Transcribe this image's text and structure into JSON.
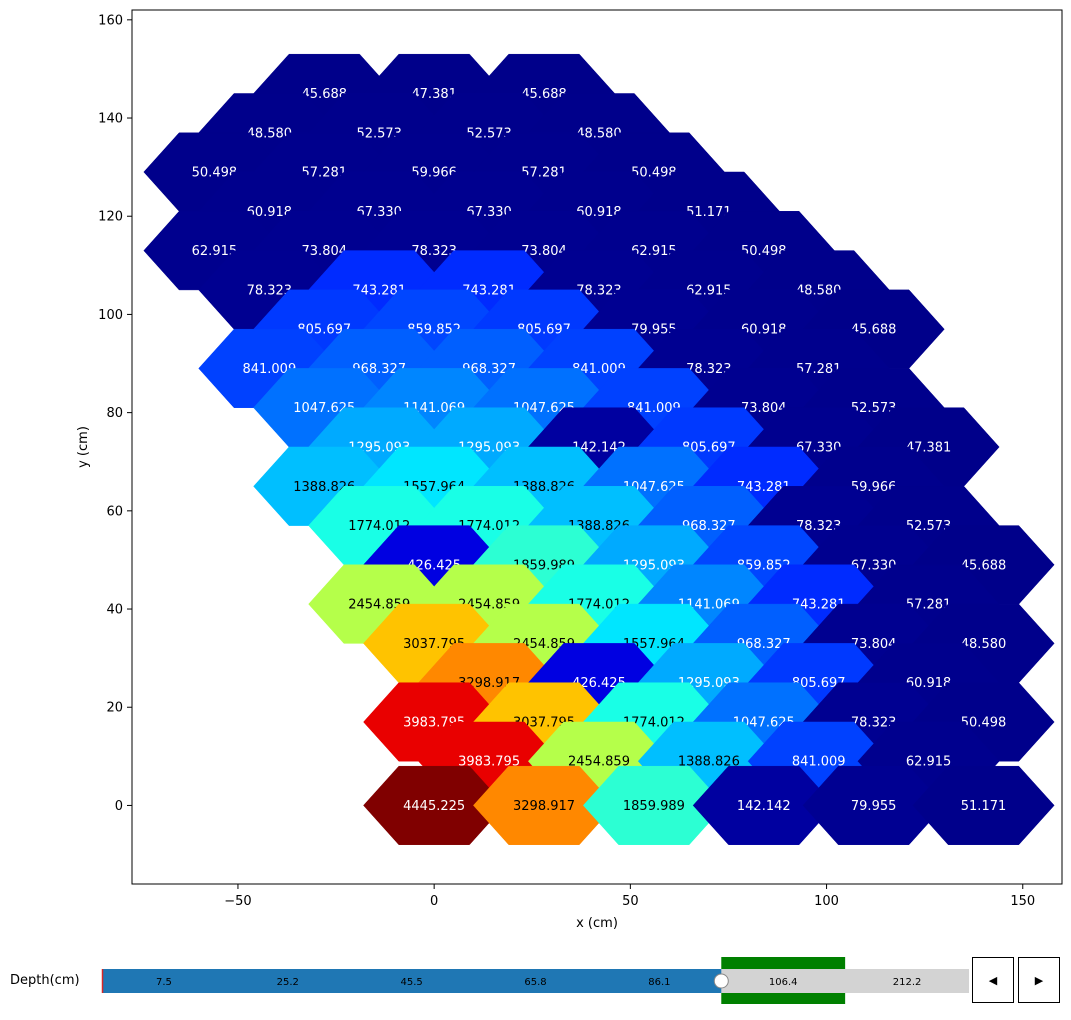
{
  "chart_data": {
    "type": "heatmap",
    "style": "hexagonal",
    "xlabel": "x (cm)",
    "ylabel": "y (cm)",
    "xlim": [
      -77,
      160
    ],
    "ylim": [
      -16,
      162
    ],
    "xticks": [
      -50,
      0,
      50,
      100,
      150
    ],
    "yticks": [
      0,
      20,
      40,
      60,
      80,
      100,
      120,
      140,
      160
    ],
    "xtick_labels": [
      "−50",
      "0",
      "50",
      "100",
      "150"
    ],
    "ytick_labels": [
      "0",
      "20",
      "40",
      "60",
      "80",
      "100",
      "120",
      "140",
      "160"
    ],
    "colormap": "jet",
    "vmin": 0,
    "vmax": 4445.225,
    "cells": [
      {
        "x": -28,
        "y": 145,
        "value": 45.688,
        "label": "45.688"
      },
      {
        "x": 0,
        "y": 145,
        "value": 47.381,
        "label": "47.381"
      },
      {
        "x": 28,
        "y": 145,
        "value": 45.688,
        "label": "45.688"
      },
      {
        "x": -42,
        "y": 137,
        "value": 48.58,
        "label": "48.580"
      },
      {
        "x": -14,
        "y": 137,
        "value": 52.573,
        "label": "52.573"
      },
      {
        "x": 14,
        "y": 137,
        "value": 52.573,
        "label": "52.573"
      },
      {
        "x": 42,
        "y": 137,
        "value": 48.58,
        "label": "48.580"
      },
      {
        "x": -56,
        "y": 129,
        "value": 50.498,
        "label": "50.498"
      },
      {
        "x": -28,
        "y": 129,
        "value": 57.281,
        "label": "57.281"
      },
      {
        "x": 0,
        "y": 129,
        "value": 59.966,
        "label": "59.966"
      },
      {
        "x": 28,
        "y": 129,
        "value": 57.281,
        "label": "57.281"
      },
      {
        "x": 56,
        "y": 129,
        "value": 50.498,
        "label": "50.498"
      },
      {
        "x": -42,
        "y": 121,
        "value": 60.918,
        "label": "60.918"
      },
      {
        "x": -14,
        "y": 121,
        "value": 67.33,
        "label": "67.330"
      },
      {
        "x": 14,
        "y": 121,
        "value": 67.33,
        "label": "67.330"
      },
      {
        "x": 42,
        "y": 121,
        "value": 60.918,
        "label": "60.918"
      },
      {
        "x": 70,
        "y": 121,
        "value": 51.171,
        "label": "51.171"
      },
      {
        "x": -56,
        "y": 113,
        "value": 62.915,
        "label": "62.915"
      },
      {
        "x": -28,
        "y": 113,
        "value": 73.804,
        "label": "73.804"
      },
      {
        "x": 0,
        "y": 113,
        "value": 78.323,
        "label": "78.323"
      },
      {
        "x": 28,
        "y": 113,
        "value": 73.804,
        "label": "73.804"
      },
      {
        "x": 56,
        "y": 113,
        "value": 62.915,
        "label": "62.915"
      },
      {
        "x": 84,
        "y": 113,
        "value": 50.498,
        "label": "50.498"
      },
      {
        "x": -42,
        "y": 105,
        "value": 78.323,
        "label": "78.323"
      },
      {
        "x": -14,
        "y": 105,
        "value": 743.281,
        "label": "743.281"
      },
      {
        "x": 14,
        "y": 105,
        "value": 743.281,
        "label": "743.281"
      },
      {
        "x": 42,
        "y": 105,
        "value": 78.323,
        "label": "78.323"
      },
      {
        "x": 70,
        "y": 105,
        "value": 62.915,
        "label": "62.915"
      },
      {
        "x": 98,
        "y": 105,
        "value": 48.58,
        "label": "48.580"
      },
      {
        "x": -28,
        "y": 97,
        "value": 805.697,
        "label": "805.697"
      },
      {
        "x": 0,
        "y": 97,
        "value": 859.852,
        "label": "859.852"
      },
      {
        "x": 28,
        "y": 97,
        "value": 805.697,
        "label": "805.697"
      },
      {
        "x": 56,
        "y": 97,
        "value": 79.955,
        "label": "79.955"
      },
      {
        "x": 84,
        "y": 97,
        "value": 60.918,
        "label": "60.918"
      },
      {
        "x": 112,
        "y": 97,
        "value": 45.688,
        "label": "45.688"
      },
      {
        "x": -42,
        "y": 89,
        "value": 841.009,
        "label": "841.009"
      },
      {
        "x": -14,
        "y": 89,
        "value": 968.327,
        "label": "968.327"
      },
      {
        "x": 14,
        "y": 89,
        "value": 968.327,
        "label": "968.327"
      },
      {
        "x": 42,
        "y": 89,
        "value": 841.009,
        "label": "841.009"
      },
      {
        "x": 70,
        "y": 89,
        "value": 78.323,
        "label": "78.323"
      },
      {
        "x": 98,
        "y": 89,
        "value": 57.281,
        "label": "57.281"
      },
      {
        "x": -28,
        "y": 81,
        "value": 1047.625,
        "label": "1047.625"
      },
      {
        "x": 0,
        "y": 81,
        "value": 1141.069,
        "label": "1141.069"
      },
      {
        "x": 28,
        "y": 81,
        "value": 1047.625,
        "label": "1047.625"
      },
      {
        "x": 56,
        "y": 81,
        "value": 841.009,
        "label": "841.009"
      },
      {
        "x": 84,
        "y": 81,
        "value": 73.804,
        "label": "73.804"
      },
      {
        "x": 112,
        "y": 81,
        "value": 52.573,
        "label": "52.573"
      },
      {
        "x": -14,
        "y": 73,
        "value": 1295.093,
        "label": "1295.093"
      },
      {
        "x": 14,
        "y": 73,
        "value": 1295.093,
        "label": "1295.093"
      },
      {
        "x": 42,
        "y": 73,
        "value": 142.142,
        "label": "142.142"
      },
      {
        "x": 70,
        "y": 73,
        "value": 805.697,
        "label": "805.697"
      },
      {
        "x": 98,
        "y": 73,
        "value": 67.33,
        "label": "67.330"
      },
      {
        "x": 126,
        "y": 73,
        "value": 47.381,
        "label": "47.381"
      },
      {
        "x": -28,
        "y": 65,
        "value": 1388.826,
        "label": "1388.826"
      },
      {
        "x": 0,
        "y": 65,
        "value": 1557.964,
        "label": "1557.964"
      },
      {
        "x": 28,
        "y": 65,
        "value": 1388.826,
        "label": "1388.826"
      },
      {
        "x": 56,
        "y": 65,
        "value": 1047.625,
        "label": "1047.625"
      },
      {
        "x": 84,
        "y": 65,
        "value": 743.281,
        "label": "743.281"
      },
      {
        "x": 112,
        "y": 65,
        "value": 59.966,
        "label": "59.966"
      },
      {
        "x": -14,
        "y": 57,
        "value": 1774.012,
        "label": "1774.012"
      },
      {
        "x": 14,
        "y": 57,
        "value": 1774.012,
        "label": "1774.012"
      },
      {
        "x": 42,
        "y": 57,
        "value": 1388.826,
        "label": "1388.826"
      },
      {
        "x": 70,
        "y": 57,
        "value": 968.327,
        "label": "968.327"
      },
      {
        "x": 98,
        "y": 57,
        "value": 78.323,
        "label": "78.323"
      },
      {
        "x": 126,
        "y": 57,
        "value": 52.573,
        "label": "52.573"
      },
      {
        "x": 0,
        "y": 49,
        "value": 426.425,
        "label": "426.425"
      },
      {
        "x": 28,
        "y": 49,
        "value": 1859.989,
        "label": "1859.989"
      },
      {
        "x": 56,
        "y": 49,
        "value": 1295.093,
        "label": "1295.093"
      },
      {
        "x": 84,
        "y": 49,
        "value": 859.852,
        "label": "859.852"
      },
      {
        "x": 112,
        "y": 49,
        "value": 67.33,
        "label": "67.330"
      },
      {
        "x": 140,
        "y": 49,
        "value": 45.688,
        "label": "45.688"
      },
      {
        "x": -14,
        "y": 41,
        "value": 2454.859,
        "label": "2454.859"
      },
      {
        "x": 14,
        "y": 41,
        "value": 2454.859,
        "label": "2454.859"
      },
      {
        "x": 42,
        "y": 41,
        "value": 1774.012,
        "label": "1774.012"
      },
      {
        "x": 70,
        "y": 41,
        "value": 1141.069,
        "label": "1141.069"
      },
      {
        "x": 98,
        "y": 41,
        "value": 743.281,
        "label": "743.281"
      },
      {
        "x": 126,
        "y": 41,
        "value": 57.281,
        "label": "57.281"
      },
      {
        "x": 0,
        "y": 33,
        "value": 3037.795,
        "label": "3037.795"
      },
      {
        "x": 28,
        "y": 33,
        "value": 2454.859,
        "label": "2454.859"
      },
      {
        "x": 56,
        "y": 33,
        "value": 1557.964,
        "label": "1557.964"
      },
      {
        "x": 84,
        "y": 33,
        "value": 968.327,
        "label": "968.327"
      },
      {
        "x": 112,
        "y": 33,
        "value": 73.804,
        "label": "73.804"
      },
      {
        "x": 140,
        "y": 33,
        "value": 48.58,
        "label": "48.580"
      },
      {
        "x": 14,
        "y": 25,
        "value": 3298.917,
        "label": "3298.917"
      },
      {
        "x": 42,
        "y": 25,
        "value": 426.425,
        "label": "426.425"
      },
      {
        "x": 70,
        "y": 25,
        "value": 1295.093,
        "label": "1295.093"
      },
      {
        "x": 98,
        "y": 25,
        "value": 805.697,
        "label": "805.697"
      },
      {
        "x": 126,
        "y": 25,
        "value": 60.918,
        "label": "60.918"
      },
      {
        "x": 0,
        "y": 17,
        "value": 3983.795,
        "label": "3983.795"
      },
      {
        "x": 28,
        "y": 17,
        "value": 3037.795,
        "label": "3037.795"
      },
      {
        "x": 56,
        "y": 17,
        "value": 1774.012,
        "label": "1774.012"
      },
      {
        "x": 84,
        "y": 17,
        "value": 1047.625,
        "label": "1047.625"
      },
      {
        "x": 112,
        "y": 17,
        "value": 78.323,
        "label": "78.323"
      },
      {
        "x": 140,
        "y": 17,
        "value": 50.498,
        "label": "50.498"
      },
      {
        "x": 14,
        "y": 9,
        "value": 3983.795,
        "label": "3983.795"
      },
      {
        "x": 42,
        "y": 9,
        "value": 2454.859,
        "label": "2454.859"
      },
      {
        "x": 70,
        "y": 9,
        "value": 1388.826,
        "label": "1388.826"
      },
      {
        "x": 98,
        "y": 9,
        "value": 841.009,
        "label": "841.009"
      },
      {
        "x": 126,
        "y": 9,
        "value": 62.915,
        "label": "62.915"
      },
      {
        "x": 0,
        "y": 0,
        "value": 4445.225,
        "label": "4445.225"
      },
      {
        "x": 28,
        "y": 0,
        "value": 3298.917,
        "label": "3298.917"
      },
      {
        "x": 56,
        "y": 0,
        "value": 1859.989,
        "label": "1859.989"
      },
      {
        "x": 84,
        "y": 0,
        "value": 142.142,
        "label": "142.142"
      },
      {
        "x": 112,
        "y": 0,
        "value": 79.955,
        "label": "79.955"
      },
      {
        "x": 140,
        "y": 0,
        "value": 51.171,
        "label": "51.171"
      }
    ]
  },
  "slider": {
    "label": "Depth(cm)",
    "values": [
      "7.5",
      "25.2",
      "45.5",
      "65.8",
      "86.1",
      "106.4",
      "212.2"
    ],
    "current_index": 5,
    "filled_color": "#1f77b4",
    "empty_color": "#d3d3d3",
    "highlight_color": "#008000"
  },
  "controls": {
    "prev_label": "◀",
    "next_label": "▶"
  }
}
